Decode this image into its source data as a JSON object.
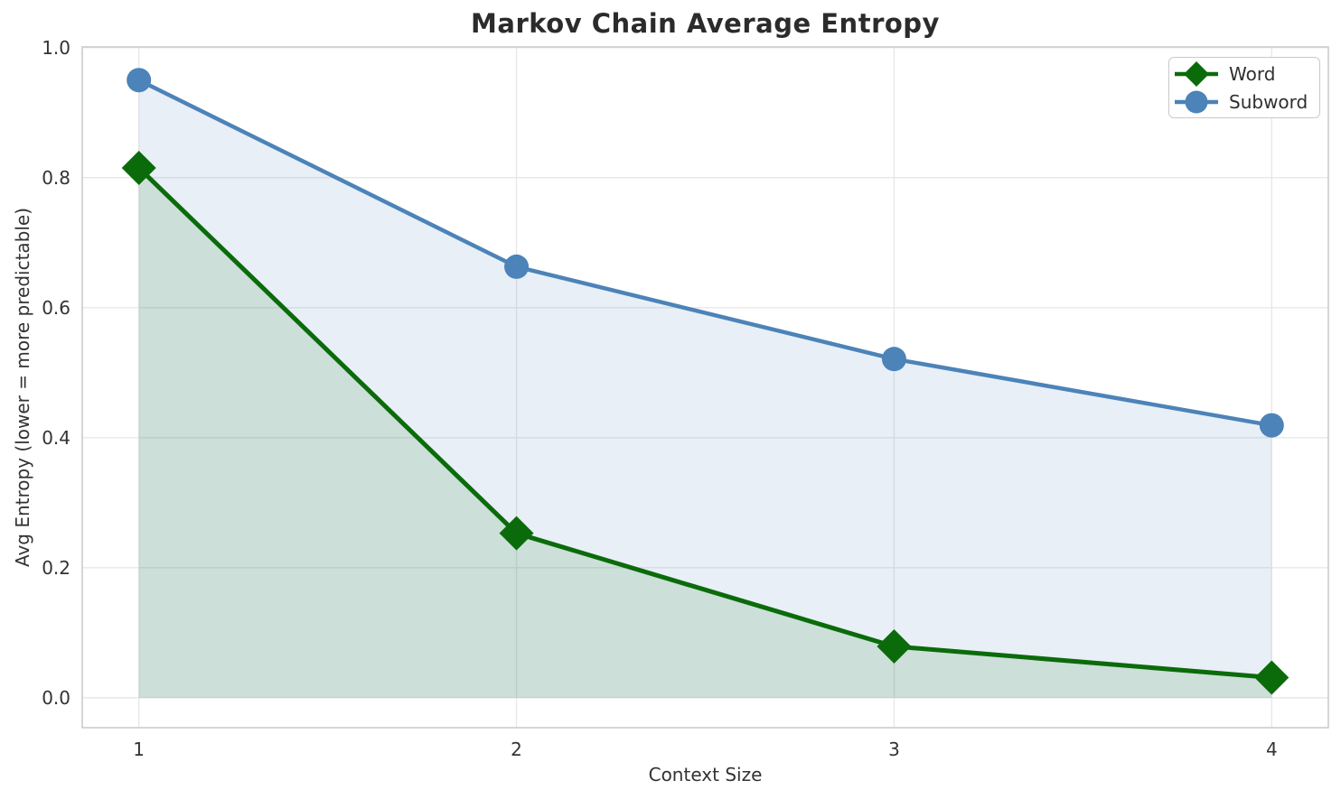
{
  "figure": {
    "background": "#ffffff"
  },
  "chart_data": {
    "type": "line",
    "title": "Markov Chain Average Entropy",
    "xlabel": "Context Size",
    "ylabel": "Avg Entropy (lower = more predictable)",
    "categories": [
      1,
      2,
      3,
      4
    ],
    "x_tick_labels": [
      "1",
      "2",
      "3",
      "4"
    ],
    "y_ticks": [
      0,
      0.2,
      0.4,
      0.6,
      0.8,
      1.0
    ],
    "y_tick_labels": [
      "0.0",
      "0.2",
      "0.4",
      "0.6",
      "0.8",
      "1.0"
    ],
    "xlim": [
      0.85,
      4.15
    ],
    "ylim": [
      -0.046,
      1.001
    ],
    "grid": true,
    "area_baseline": 0,
    "legend": {
      "position": "top-right",
      "entries": [
        "Word",
        "Subword"
      ]
    },
    "series": [
      {
        "name": "Word",
        "marker": "diamond",
        "color": "#0b6b0b",
        "fill_opacity": 0.12,
        "linewidth": 5,
        "values": [
          0.815,
          0.253,
          0.079,
          0.031
        ]
      },
      {
        "name": "Subword",
        "marker": "circle",
        "color": "#4c83b8",
        "fill_opacity": 0.13,
        "linewidth": 4.5,
        "values": [
          0.95,
          0.663,
          0.521,
          0.419
        ]
      }
    ],
    "colors": {
      "grid": "#e8e8e8",
      "spine": "#cccccc",
      "tick_text": "#333333",
      "title_text": "#2b2b2b"
    }
  }
}
